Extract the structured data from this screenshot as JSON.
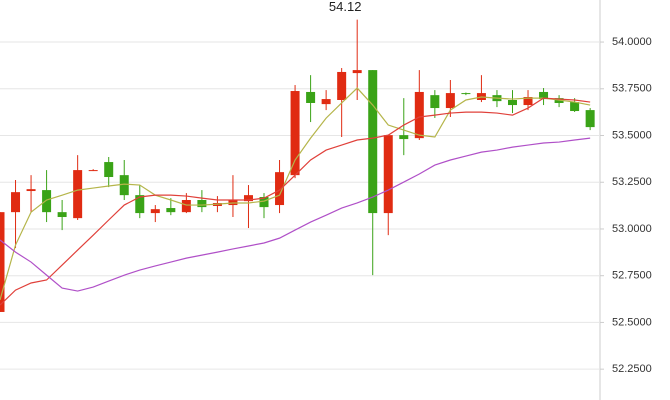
{
  "chart_data": {
    "type": "candlestick",
    "open": [
      52.556,
      53.09,
      53.203,
      53.208,
      53.09,
      53.058,
      53.315,
      53.358,
      53.288,
      53.181,
      53.085,
      53.112,
      53.09,
      53.155,
      53.123,
      53.128,
      53.149,
      53.171,
      53.128,
      53.288,
      53.733,
      53.668,
      53.69,
      53.834,
      53.85,
      53.085,
      53.502,
      53.486,
      53.716,
      53.647,
      53.727,
      53.69,
      53.716,
      53.69,
      53.663,
      53.733,
      53.7,
      53.679,
      53.636
    ],
    "high": [
      53.09,
      53.262,
      53.288,
      53.315,
      53.155,
      53.395,
      53.32,
      53.385,
      53.369,
      53.235,
      53.128,
      53.165,
      53.192,
      53.208,
      53.176,
      53.288,
      53.235,
      53.192,
      53.369,
      53.77,
      53.823,
      53.743,
      53.861,
      54.12,
      53.85,
      53.502,
      53.7,
      53.85,
      53.743,
      53.797,
      53.73,
      53.823,
      53.743,
      53.743,
      53.743,
      53.754,
      53.716,
      53.7,
      53.647
    ],
    "low": [
      52.556,
      52.898,
      53.09,
      53.037,
      52.994,
      53.048,
      53.31,
      53.224,
      53.155,
      53.058,
      53.037,
      53.074,
      53.085,
      53.09,
      53.09,
      53.064,
      53.005,
      53.058,
      53.085,
      53.272,
      53.572,
      53.636,
      53.492,
      53.69,
      52.753,
      52.967,
      53.395,
      53.476,
      53.594,
      53.599,
      53.716,
      53.679,
      53.652,
      53.62,
      53.636,
      53.663,
      53.652,
      53.626,
      53.529
    ],
    "close": [
      53.09,
      53.197,
      53.213,
      53.09,
      53.064,
      53.315,
      53.315,
      53.278,
      53.181,
      53.085,
      53.106,
      53.09,
      53.155,
      53.117,
      53.139,
      53.155,
      53.181,
      53.117,
      53.304,
      53.738,
      53.674,
      53.695,
      53.84,
      53.85,
      53.085,
      53.502,
      53.481,
      53.733,
      53.647,
      53.727,
      53.722,
      53.727,
      53.684,
      53.663,
      53.706,
      53.695,
      53.674,
      53.631,
      53.545
    ],
    "up_color": "#e02b12",
    "down_color": "#3aa317",
    "lines": [
      {
        "color": "#b5b54a",
        "values": [
          52.62,
          52.914,
          53.09,
          53.155,
          53.181,
          53.208,
          53.219,
          53.23,
          53.24,
          53.235,
          53.181,
          53.155,
          53.128,
          53.128,
          53.133,
          53.139,
          53.139,
          53.149,
          53.181,
          53.369,
          53.486,
          53.593,
          53.674,
          53.754,
          53.663,
          53.556,
          53.529,
          53.502,
          53.492,
          53.636,
          53.69,
          53.706,
          53.7,
          53.695,
          53.7,
          53.7,
          53.69,
          53.679,
          53.663
        ]
      },
      {
        "color": "#e0403a",
        "values": [
          52.593,
          52.673,
          52.711,
          52.727,
          52.807,
          52.887,
          52.967,
          53.048,
          53.128,
          53.171,
          53.181,
          53.181,
          53.176,
          53.165,
          53.155,
          53.155,
          53.155,
          53.165,
          53.208,
          53.288,
          53.369,
          53.422,
          53.449,
          53.476,
          53.486,
          53.502,
          53.556,
          53.599,
          53.609,
          53.62,
          53.625,
          53.625,
          53.62,
          53.609,
          53.647,
          53.7,
          53.695,
          53.69,
          53.679
        ]
      },
      {
        "color": "#b050c8",
        "values": [
          52.941,
          52.876,
          52.823,
          52.753,
          52.684,
          52.668,
          52.689,
          52.721,
          52.753,
          52.78,
          52.802,
          52.823,
          52.844,
          52.86,
          52.876,
          52.893,
          52.909,
          52.925,
          52.951,
          52.994,
          53.037,
          53.074,
          53.112,
          53.139,
          53.171,
          53.208,
          53.251,
          53.294,
          53.342,
          53.369,
          53.39,
          53.411,
          53.422,
          53.438,
          53.449,
          53.46,
          53.465,
          53.476,
          53.486
        ]
      }
    ],
    "ylim": [
      52.085,
      54.225
    ],
    "yticks": [
      {
        "value": 52.25,
        "label": "52.2500"
      },
      {
        "value": 52.5,
        "label": "52.5000"
      },
      {
        "value": 52.75,
        "label": "52.7500"
      },
      {
        "value": 53,
        "label": "53.0000"
      },
      {
        "value": 53.25,
        "label": "53.2500"
      },
      {
        "value": 53.5,
        "label": "53.5000"
      },
      {
        "value": 53.75,
        "label": "53.7500"
      },
      {
        "value": 54,
        "label": "54.0000"
      }
    ],
    "grid": true
  }
}
